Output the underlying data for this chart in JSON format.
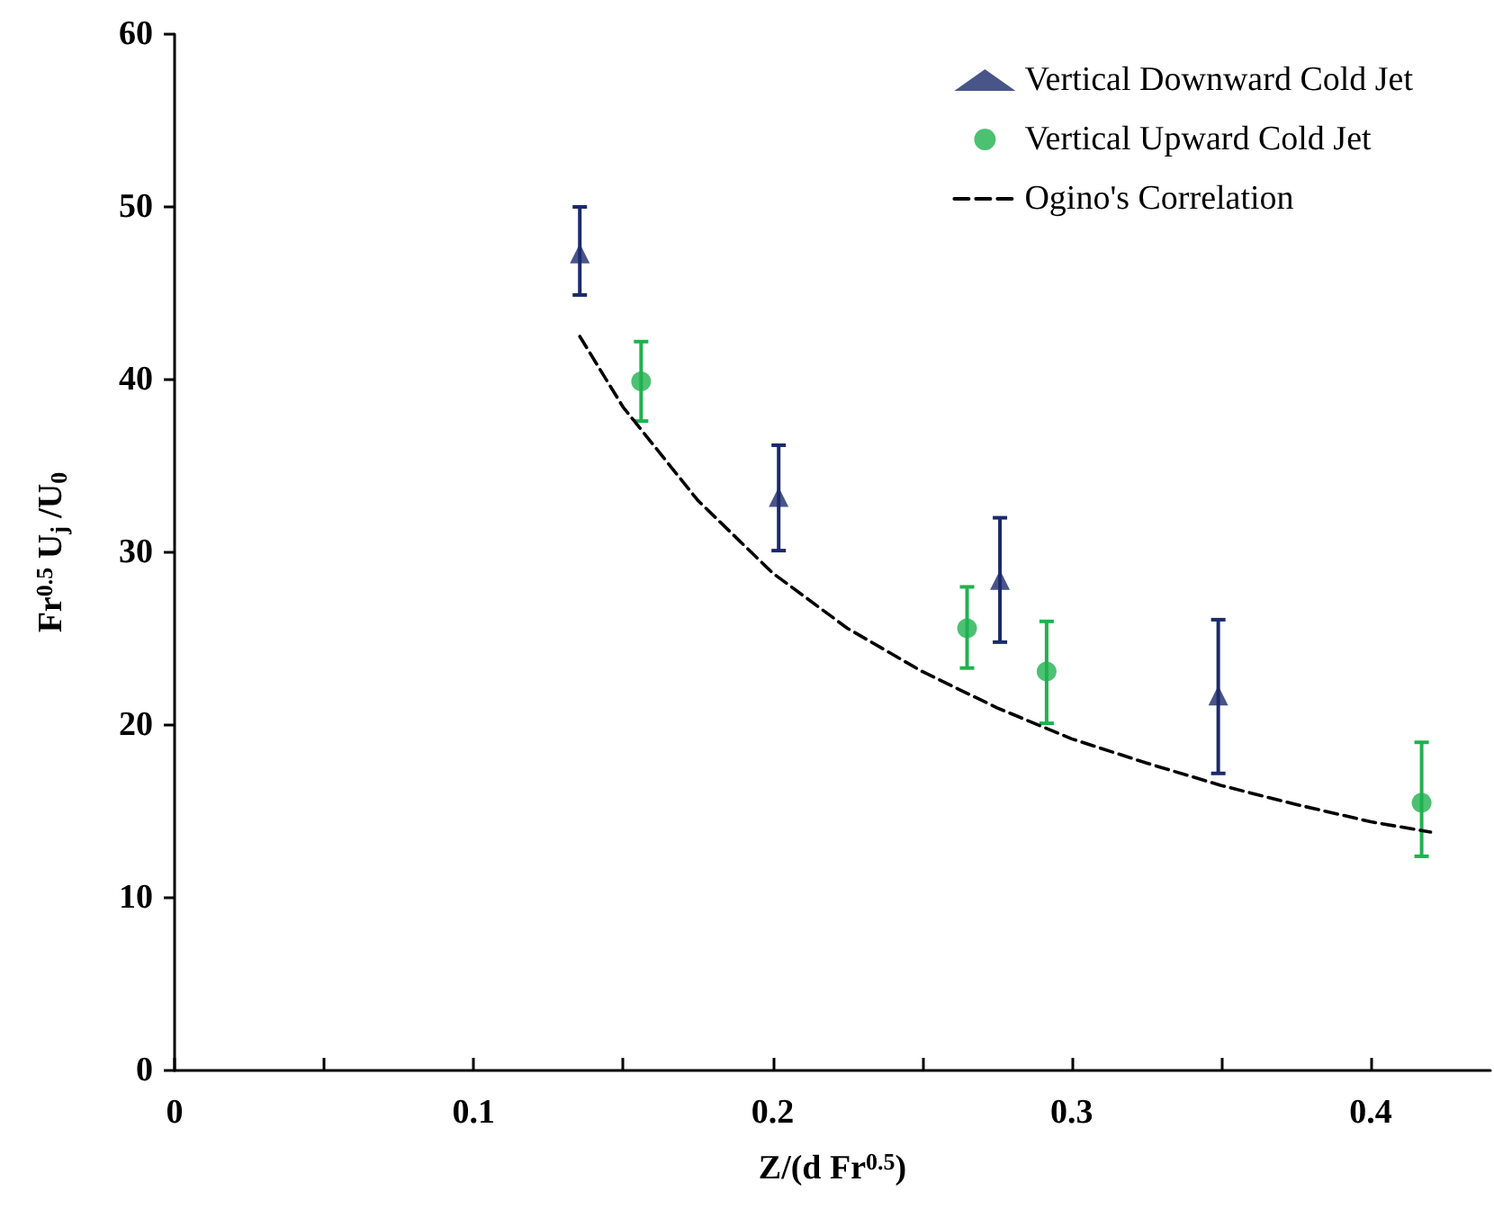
{
  "chart_data": {
    "type": "scatter",
    "xlabel": "Z/(d Fr$^{0.5}$)",
    "ylabel": "Fr$^{0.5}$ U$_{j}$ /U$_{0}$",
    "xlim": [
      0,
      0.44
    ],
    "xticks": [
      0,
      0.1,
      0.2,
      0.3,
      0.4
    ],
    "ylim": [
      0,
      60
    ],
    "yticks": [
      0,
      10,
      20,
      30,
      40,
      50,
      60
    ],
    "grid": false,
    "legend": "top right",
    "series": [
      {
        "name": "Vertical Downward Cold Jet",
        "marker": "triangle",
        "color": "#1b2a6b",
        "x": [
          0.1355,
          0.202,
          0.276,
          0.349
        ],
        "values": [
          47.3,
          33.2,
          28.4,
          21.7
        ],
        "errors": [
          [
            44.9,
            50.0
          ],
          [
            30.1,
            36.2
          ],
          [
            24.8,
            32.0
          ],
          [
            17.2,
            26.1
          ]
        ]
      },
      {
        "name": "Vertical Upward Cold Jet",
        "marker": "circle",
        "color": "#1fb24f",
        "x": [
          0.156,
          0.265,
          0.2916,
          0.417
        ],
        "values": [
          39.9,
          25.6,
          23.1,
          15.5
        ],
        "errors": [
          [
            37.6,
            42.2
          ],
          [
            23.3,
            28.0
          ],
          [
            20.1,
            26.0
          ],
          [
            12.4,
            19.0
          ]
        ]
      },
      {
        "name": "Ogino's Correlation",
        "type": "line",
        "marker": "none",
        "line_style": "dashed",
        "color": "#000000",
        "x": [
          0.1355,
          0.15,
          0.175,
          0.2,
          0.225,
          0.25,
          0.275,
          0.3,
          0.325,
          0.35,
          0.375,
          0.4,
          0.42
        ],
        "values": [
          42.5,
          38.4,
          33.0,
          28.8,
          25.6,
          23.1,
          21.0,
          19.2,
          17.8,
          16.5,
          15.4,
          14.4,
          13.8
        ]
      }
    ]
  }
}
